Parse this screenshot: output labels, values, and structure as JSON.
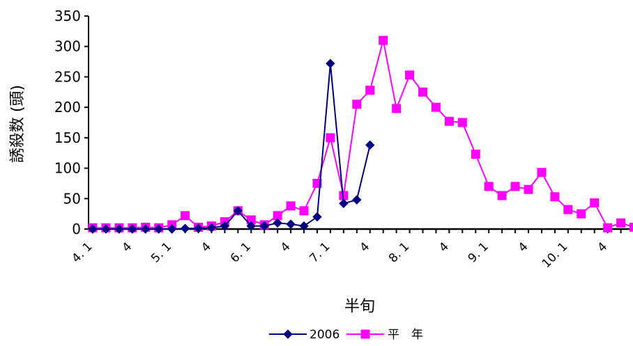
{
  "chart_data": {
    "type": "line",
    "title": "",
    "xlabel": "半旬",
    "ylabel": "誘殺数 (頭)",
    "ylim": [
      0,
      350
    ],
    "yticks": [
      0,
      50,
      100,
      150,
      200,
      250,
      300,
      350
    ],
    "grid": false,
    "legend_position": "bottom",
    "x_count": 42,
    "x_tick_labels": [
      {
        "index": 0,
        "label": "4. 1"
      },
      {
        "index": 3,
        "label": "4"
      },
      {
        "index": 6,
        "label": "5. 1"
      },
      {
        "index": 9,
        "label": "4"
      },
      {
        "index": 12,
        "label": "6. 1"
      },
      {
        "index": 15,
        "label": "4"
      },
      {
        "index": 18,
        "label": "7. 1"
      },
      {
        "index": 21,
        "label": "4"
      },
      {
        "index": 24,
        "label": "8. 1"
      },
      {
        "index": 27,
        "label": "4"
      },
      {
        "index": 30,
        "label": "9. 1"
      },
      {
        "index": 33,
        "label": "4"
      },
      {
        "index": 36,
        "label": "10. 1"
      },
      {
        "index": 39,
        "label": "4"
      }
    ],
    "series": [
      {
        "name": "2006",
        "color": "#000080",
        "marker": "diamond",
        "values": [
          0,
          0,
          0,
          0,
          0,
          0,
          0,
          1,
          1,
          2,
          5,
          30,
          5,
          5,
          10,
          8,
          5,
          20,
          272,
          42,
          48,
          138
        ]
      },
      {
        "name": "平　年",
        "color": "#ff00ff",
        "marker": "square",
        "values": [
          2,
          2,
          2,
          2,
          3,
          2,
          7,
          22,
          3,
          5,
          12,
          30,
          15,
          7,
          22,
          38,
          30,
          75,
          150,
          55,
          205,
          228,
          310,
          198,
          253,
          225,
          200,
          177,
          175,
          123,
          70,
          55,
          70,
          65,
          93,
          53,
          32,
          25,
          43,
          2,
          10,
          3
        ]
      }
    ]
  }
}
